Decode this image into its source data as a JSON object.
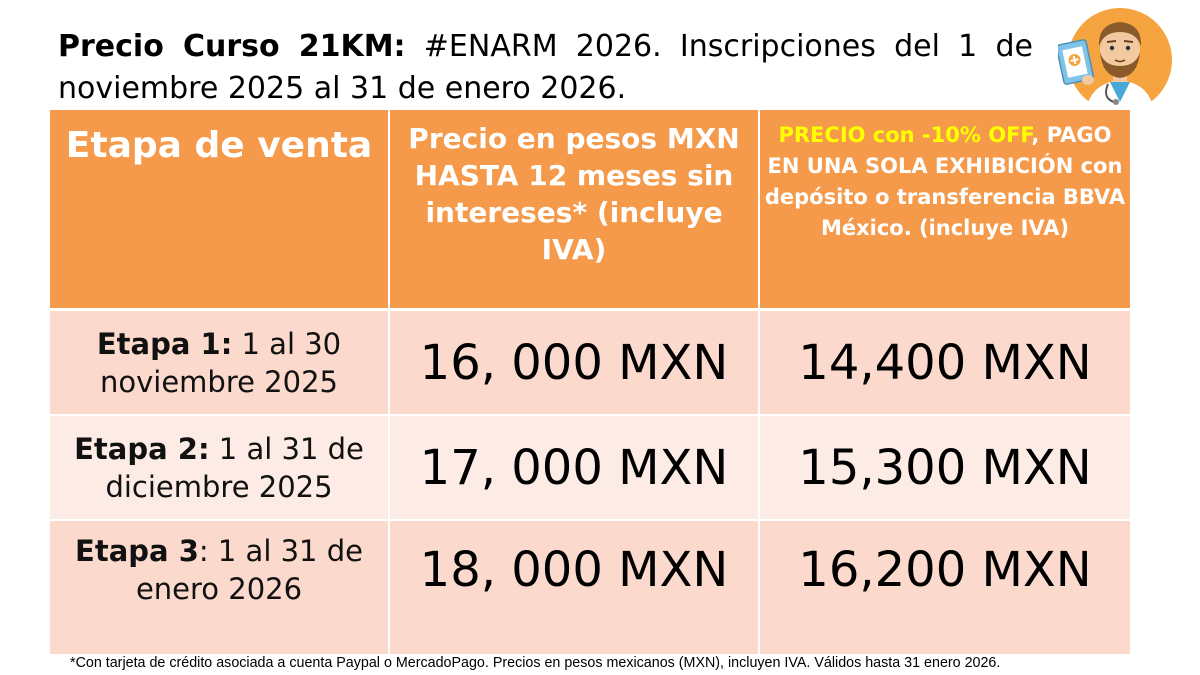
{
  "heading": {
    "bold_part": "Precio Curso 21KM:",
    "rest": " #ENARM 2026. Inscripciones del 1 de noviembre 2025 al 31 de enero 2026."
  },
  "colors": {
    "header_bg": "#f59a4b",
    "header_text": "#ffffff",
    "promo_text": "#ffff00",
    "row_dark": "#fbd9cc",
    "row_light": "#fdece5"
  },
  "icons": {
    "doctor": "doctor-avatar-icon"
  },
  "table": {
    "headers": {
      "col1": "Etapa de venta",
      "col2": "Precio en pesos MXN HASTA 12 meses sin intereses* (incluye IVA)",
      "col3_promo": "PRECIO con -10% OFF",
      "col3_rest": ", PAGO EN UNA SOLA EXHIBICIÓN con depósito o transferencia BBVA México. (incluye IVA)"
    },
    "rows": [
      {
        "stage_bold": "Etapa 1:",
        "stage_rest": " 1 al 30 noviembre 2025",
        "price_msi": "16, 000 MXN",
        "price_discount": "14,400 MXN"
      },
      {
        "stage_bold": "Etapa 2:",
        "stage_rest": " 1 al 31 de diciembre 2025",
        "price_msi": "17, 000 MXN",
        "price_discount": "15,300 MXN"
      },
      {
        "stage_bold": "Etapa 3",
        "stage_rest": ": 1 al 31 de enero 2026",
        "price_msi": "18, 000 MXN",
        "price_discount": "16,200 MXN"
      }
    ]
  },
  "footnote": "*Con tarjeta de crédito asociada a cuenta Paypal o MercadoPago. Precios en pesos mexicanos (MXN), incluyen IVA. Válidos hasta 31 enero 2026."
}
